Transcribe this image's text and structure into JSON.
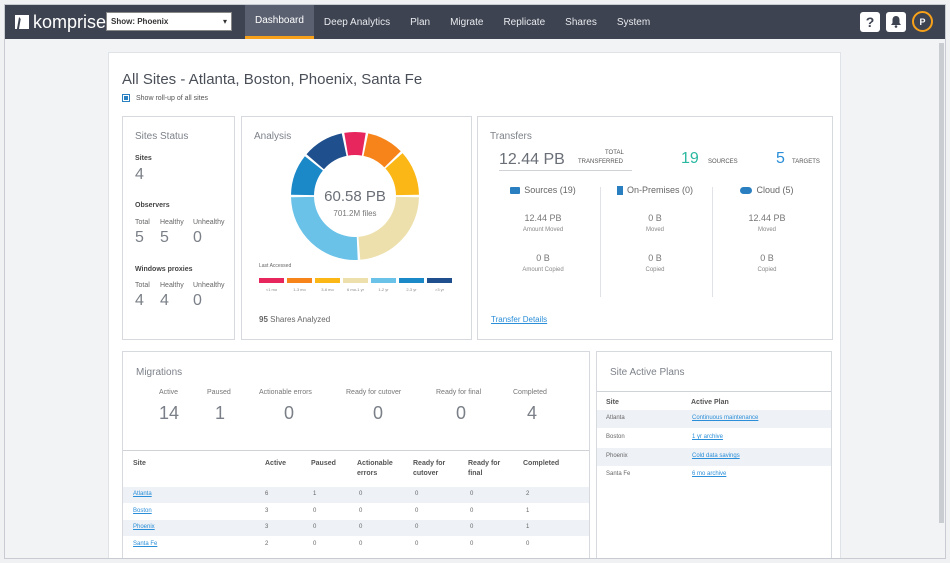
{
  "app": {
    "logo_text": "komprise",
    "site_select": "Show: Phoenix"
  },
  "nav": [
    "Dashboard",
    "Deep Analytics",
    "Plan",
    "Migrate",
    "Replicate",
    "Shares",
    "System"
  ],
  "topbar": {
    "help": "?",
    "avatar_initial": "P"
  },
  "page": {
    "title": "All Sites - Atlanta, Boston, Phoenix, Santa Fe",
    "rollup_label": "Show roll-up of all sites"
  },
  "sites_status": {
    "title": "Sites Status",
    "sites_label": "Sites",
    "sites_value": "4",
    "observers_label": "Observers",
    "observers": {
      "total_label": "Total",
      "healthy_label": "Healthy",
      "unhealthy_label": "Unhealthy",
      "total": "5",
      "healthy": "5",
      "unhealthy": "0"
    },
    "proxies_label": "Windows proxies",
    "proxies": {
      "total_label": "Total",
      "healthy_label": "Healthy",
      "unhealthy_label": "Unhealthy",
      "total": "4",
      "healthy": "4",
      "unhealthy": "0"
    }
  },
  "analysis": {
    "title": "Analysis",
    "total": "60.58 PB",
    "files": "701.2M files",
    "last_accessed_label": "Last Accessed",
    "shares_count": "95",
    "shares_label": "Shares Analyzed",
    "buckets": [
      {
        "label": "<1 mo",
        "color": "#e8265e",
        "fraction": 0.06
      },
      {
        "label": "1-3 mo",
        "color": "#f7841b",
        "fraction": 0.1
      },
      {
        "label": "3-6 mo",
        "color": "#fbb716",
        "fraction": 0.12
      },
      {
        "label": "6 mo-1 yr",
        "color": "#ede0ad",
        "fraction": 0.24
      },
      {
        "label": "1-2 yr",
        "color": "#6ac2e8",
        "fraction": 0.26
      },
      {
        "label": "2-3 yr",
        "color": "#1b88c8",
        "fraction": 0.11
      },
      {
        "label": ">3 yr",
        "color": "#1f4f8c",
        "fraction": 0.11
      }
    ]
  },
  "transfers": {
    "title": "Transfers",
    "total_value": "12.44 PB",
    "total_label_1": "TOTAL",
    "total_label_2": "TRANSFERRED",
    "sources_value": "19",
    "sources_label": "SOURCES",
    "targets_value": "5",
    "targets_label": "TARGETS",
    "columns": [
      {
        "name": "Sources (19)",
        "icon": "folder-icon",
        "v1": "12.44 PB",
        "l1": "Amount Moved",
        "v2": "0 B",
        "l2": "Amount Copied"
      },
      {
        "name": "On-Premises (0)",
        "icon": "building-icon",
        "v1": "0 B",
        "l1": "Moved",
        "v2": "0 B",
        "l2": "Copied"
      },
      {
        "name": "Cloud (5)",
        "icon": "cloud-icon",
        "v1": "12.44 PB",
        "l1": "Moved",
        "v2": "0 B",
        "l2": "Copied"
      }
    ],
    "details_link": "Transfer Details",
    "accent": "#2ab8a0"
  },
  "migrations": {
    "title": "Migrations",
    "summary": [
      {
        "label": "Active",
        "value": "14"
      },
      {
        "label": "Paused",
        "value": "1"
      },
      {
        "label": "Actionable errors",
        "value": "0"
      },
      {
        "label": "Ready for cutover",
        "value": "0"
      },
      {
        "label": "Ready for final",
        "value": "0"
      },
      {
        "label": "Completed",
        "value": "4"
      }
    ],
    "headers": [
      "Site",
      "Active",
      "Paused",
      "Actionable errors",
      "Ready for cutover",
      "Ready for final",
      "Completed"
    ],
    "rows": [
      [
        "Atlanta",
        "6",
        "1",
        "0",
        "0",
        "0",
        "2"
      ],
      [
        "Boston",
        "3",
        "0",
        "0",
        "0",
        "0",
        "1"
      ],
      [
        "Phoenix",
        "3",
        "0",
        "0",
        "0",
        "0",
        "1"
      ],
      [
        "Santa Fe",
        "2",
        "0",
        "0",
        "0",
        "0",
        "0"
      ]
    ]
  },
  "active_plans": {
    "title": "Site Active Plans",
    "headers": [
      "Site",
      "Active Plan"
    ],
    "rows": [
      [
        "Atlanta",
        "Continuous maintenance"
      ],
      [
        "Boston",
        "1 yr archive"
      ],
      [
        "Phoenix",
        "Cold data savings"
      ],
      [
        "Santa Fe",
        "6 mo archive"
      ]
    ]
  }
}
